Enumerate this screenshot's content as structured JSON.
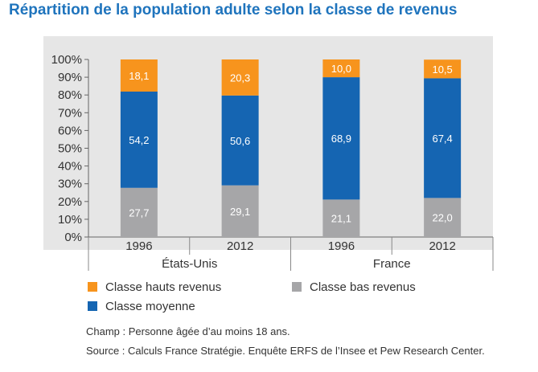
{
  "title": "Répartition de la population adulte selon la classe de revenus",
  "chart_data": {
    "type": "bar",
    "stacked": true,
    "title": "Répartition de la population adulte selon la classe de revenus",
    "ylim": [
      0,
      100
    ],
    "y_ticks": [
      "0%",
      "10%",
      "20%",
      "30%",
      "40%",
      "50%",
      "60%",
      "70%",
      "80%",
      "90%",
      "100%"
    ],
    "groups": [
      "États-Unis",
      "France"
    ],
    "categories": [
      "1996",
      "2012",
      "1996",
      "2012"
    ],
    "category_groups": [
      0,
      0,
      1,
      1
    ],
    "series": [
      {
        "name": "Classe bas revenus",
        "color": "#a6a6a8",
        "values": [
          27.7,
          29.1,
          21.1,
          22.0
        ],
        "labels": [
          "27,7",
          "29,1",
          "21,1",
          "22,0"
        ]
      },
      {
        "name": "Classe moyenne",
        "color": "#1565b2",
        "values": [
          54.2,
          50.6,
          68.9,
          67.4
        ],
        "labels": [
          "54,2",
          "50,6",
          "68,9",
          "67,4"
        ]
      },
      {
        "name": "Classe hauts revenus",
        "color": "#f7941d",
        "values": [
          18.1,
          20.3,
          10.0,
          10.5
        ],
        "labels": [
          "18,1",
          "20,3",
          "10,0",
          "10,5"
        ]
      }
    ]
  },
  "legend": [
    {
      "label": "Classe hauts revenus",
      "color": "#f7941d"
    },
    {
      "label": "Classe bas revenus",
      "color": "#a6a6a8"
    },
    {
      "label": "Classe moyenne",
      "color": "#1565b2"
    }
  ],
  "notes": {
    "champ": "Champ : Personne âgée d’au moins 18 ans.",
    "source": "Source : Calculs France Stratégie. Enquête ERFS de l’Insee et Pew Research Center."
  }
}
